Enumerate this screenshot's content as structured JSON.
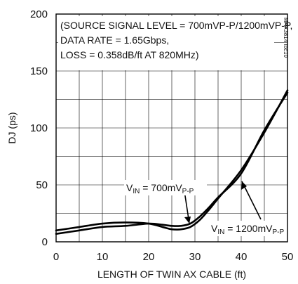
{
  "chart_data": {
    "type": "line",
    "xlabel": "LENGTH OF TWIN AX CABLE (ft)",
    "ylabel": "DJ (ps)",
    "xlim": [
      0,
      50
    ],
    "ylim": [
      0,
      200
    ],
    "x_ticks": [
      "0",
      "10",
      "20",
      "30",
      "40",
      "50"
    ],
    "y_ticks": [
      "0",
      "50",
      "100",
      "150",
      "200"
    ],
    "grid": true,
    "series": [
      {
        "name": "VIN = 700mVP-P",
        "x": [
          0,
          5,
          10,
          15,
          20,
          23,
          25,
          27,
          29,
          31,
          33,
          35,
          40,
          45,
          50
        ],
        "y": [
          10,
          13,
          16,
          17,
          16,
          13,
          11,
          11,
          13,
          19,
          28,
          38,
          63,
          96,
          133
        ]
      },
      {
        "name": "VIN = 1200mVP-P",
        "x": [
          0,
          5,
          10,
          15,
          20,
          23,
          25,
          27,
          29,
          31,
          33,
          35,
          40,
          45,
          50
        ],
        "y": [
          7,
          10,
          13,
          14,
          16,
          15,
          14,
          14,
          16,
          22,
          30,
          39,
          60,
          98,
          131
        ]
      }
    ],
    "annotations": {
      "conditions": [
        "(SOURCE SIGNAL LEVEL = 700mVP-P/1200mVP-P,",
        "DATA RATE = 1.65Gbps,",
        "LOSS = 0.358dB/ft AT 820MHz)"
      ],
      "label_700": {
        "main": "V",
        "sub1": "IN",
        "mid": " = 700mV",
        "sub2": "P-P"
      },
      "label_1200": {
        "main": "V",
        "sub1": "IN",
        "mid": " = 1200mV",
        "sub2": "P-P"
      },
      "figure_code": "MAX3814 toc10"
    }
  }
}
